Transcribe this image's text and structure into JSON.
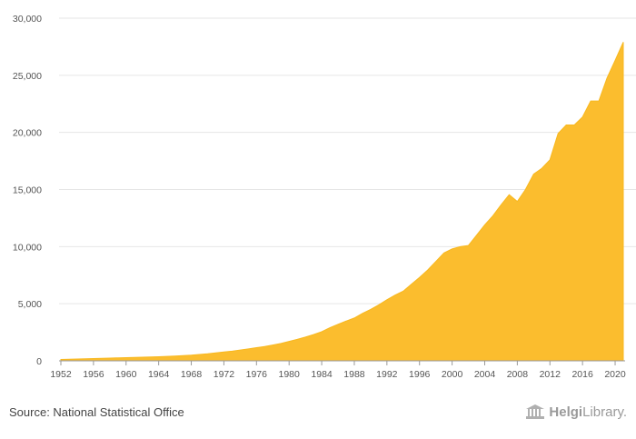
{
  "chart_data": {
    "type": "area",
    "title": "",
    "xlabel": "",
    "ylabel": "",
    "grid": true,
    "color": "#fbbd2e",
    "ylim": [
      0,
      30000
    ],
    "yticks": [
      0,
      5000,
      10000,
      15000,
      20000,
      25000,
      30000
    ],
    "ytick_labels": [
      "0",
      "5,000",
      "10,000",
      "15,000",
      "20,000",
      "25,000",
      "30,000"
    ],
    "xlim": [
      1952,
      2021
    ],
    "xticks": [
      1952,
      1956,
      1960,
      1964,
      1968,
      1972,
      1976,
      1980,
      1984,
      1988,
      1992,
      1996,
      2000,
      2004,
      2008,
      2012,
      2016,
      2020
    ],
    "x": [
      1952,
      1953,
      1954,
      1955,
      1956,
      1957,
      1958,
      1959,
      1960,
      1961,
      1962,
      1963,
      1964,
      1965,
      1966,
      1967,
      1968,
      1969,
      1970,
      1971,
      1972,
      1973,
      1974,
      1975,
      1976,
      1977,
      1978,
      1979,
      1980,
      1981,
      1982,
      1983,
      1984,
      1985,
      1986,
      1987,
      1988,
      1989,
      1990,
      1991,
      1992,
      1993,
      1994,
      1995,
      1996,
      1997,
      1998,
      1999,
      2000,
      2001,
      2002,
      2003,
      2004,
      2005,
      2006,
      2007,
      2008,
      2009,
      2010,
      2011,
      2012,
      2013,
      2014,
      2015,
      2016,
      2017,
      2018,
      2019,
      2020,
      2021
    ],
    "values": [
      120,
      140,
      160,
      180,
      200,
      220,
      240,
      260,
      280,
      300,
      320,
      340,
      360,
      390,
      420,
      460,
      500,
      560,
      620,
      700,
      780,
      850,
      950,
      1050,
      1150,
      1250,
      1380,
      1520,
      1700,
      1880,
      2080,
      2300,
      2550,
      2900,
      3200,
      3480,
      3750,
      4150,
      4500,
      4900,
      5350,
      5750,
      6100,
      6700,
      7300,
      7950,
      8700,
      9450,
      9800,
      10000,
      10100,
      11000,
      11900,
      12700,
      13650,
      14550,
      13950,
      15000,
      16350,
      16850,
      17600,
      19900,
      20650,
      20650,
      21350,
      22750,
      22750,
      24750,
      26300,
      27900
    ]
  },
  "footer": {
    "source": "Source: National Statistical Office",
    "logo_text_bold": "Helgi",
    "logo_text": "Library."
  }
}
